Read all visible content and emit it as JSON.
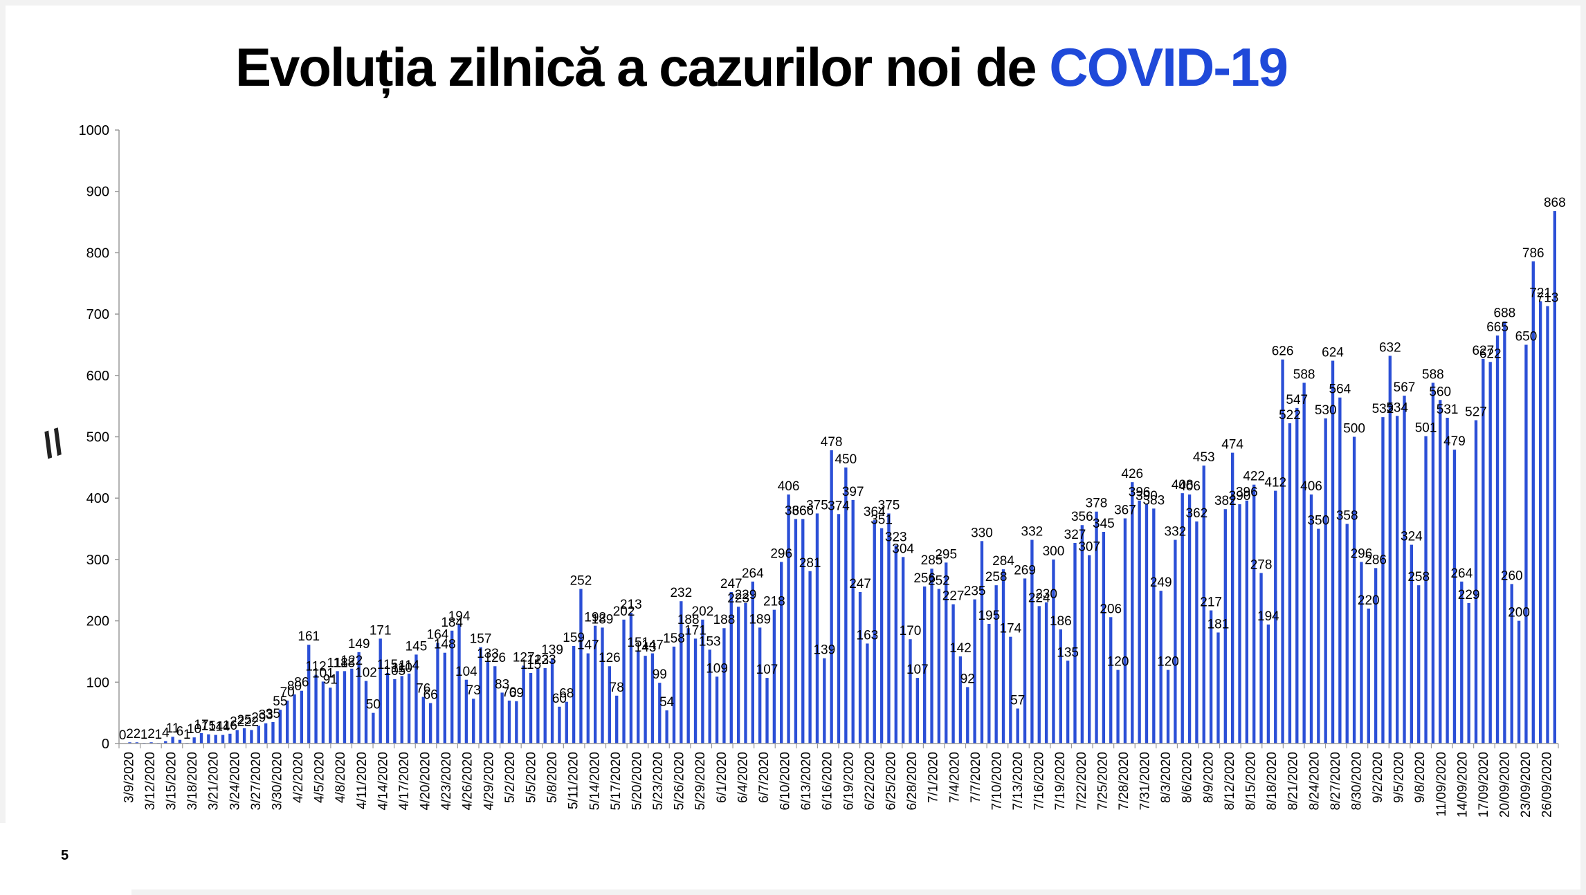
{
  "slide": {
    "title_main": "Evoluția zilnică a cazurilor noi de ",
    "title_accent": "COVID-19",
    "page_number": "5",
    "axis_break_mark": "//"
  },
  "colors": {
    "bar": "#2b4fd6",
    "accent": "#1f49d9",
    "axis": "#9a9a9a"
  },
  "chart_data": {
    "type": "bar",
    "title": "Evoluția zilnică a cazurilor noi de COVID-19",
    "xlabel": "",
    "ylabel": "",
    "ylim": [
      0,
      1000
    ],
    "yticks": [
      0,
      100,
      200,
      300,
      400,
      500,
      600,
      700,
      800,
      900,
      1000
    ],
    "grid": false,
    "legend": "none",
    "x_tick_labels": [
      "3/9/2020",
      "3/12/2020",
      "3/15/2020",
      "3/18/2020",
      "3/21/2020",
      "3/24/2020",
      "3/27/2020",
      "3/30/2020",
      "4/2/2020",
      "4/5/2020",
      "4/8/2020",
      "4/11/2020",
      "4/14/2020",
      "4/17/2020",
      "4/20/2020",
      "4/23/2020",
      "4/26/2020",
      "4/29/2020",
      "5/2/2020",
      "5/5/2020",
      "5/8/2020",
      "5/11/2020",
      "5/14/2020",
      "5/17/2020",
      "5/20/2020",
      "5/23/2020",
      "5/26/2020",
      "5/29/2020",
      "6/1/2020",
      "6/4/2020",
      "6/7/2020",
      "6/10/2020",
      "6/13/2020",
      "6/16/2020",
      "6/19/2020",
      "6/22/2020",
      "6/25/2020",
      "6/28/2020",
      "7/1/2020",
      "7/4/2020",
      "7/7/2020",
      "7/10/2020",
      "7/13/2020",
      "7/16/2020",
      "7/19/2020",
      "7/22/2020",
      "7/25/2020",
      "7/28/2020",
      "7/31/2020",
      "8/3/2020",
      "8/6/2020",
      "8/9/2020",
      "8/12/2020",
      "8/15/2020",
      "8/18/2020",
      "8/21/2020",
      "8/24/2020",
      "8/27/2020",
      "8/30/2020",
      "9/2/2020",
      "9/5/2020",
      "9/8/2020",
      "11/09/2020",
      "14/09/2020",
      "17/09/2020",
      "20/09/2020",
      "23/09/2020",
      "26/09/2020"
    ],
    "values": [
      0,
      2,
      2,
      1,
      2,
      1,
      4,
      11,
      6,
      1,
      10,
      17,
      15,
      14,
      14,
      16,
      22,
      25,
      22,
      29,
      33,
      35,
      55,
      70,
      80,
      86,
      161,
      112,
      101,
      91,
      118,
      118,
      122,
      149,
      102,
      50,
      171,
      115,
      105,
      110,
      114,
      145,
      76,
      66,
      164,
      148,
      184,
      194,
      104,
      73,
      157,
      133,
      126,
      83,
      70,
      69,
      127,
      115,
      123,
      123,
      139,
      60,
      68,
      159,
      252,
      147,
      192,
      189,
      126,
      78,
      202,
      213,
      151,
      143,
      147,
      99,
      54,
      158,
      232,
      188,
      171,
      202,
      153,
      109,
      188,
      247,
      223,
      229,
      264,
      189,
      107,
      218,
      296,
      406,
      366,
      366,
      281,
      375,
      139,
      478,
      374,
      450,
      397,
      247,
      163,
      364,
      351,
      375,
      323,
      304,
      170,
      107,
      256,
      285,
      252,
      295,
      227,
      142,
      92,
      235,
      330,
      195,
      258,
      284,
      174,
      57,
      269,
      332,
      224,
      230,
      300,
      186,
      135,
      327,
      356,
      307,
      378,
      345,
      206,
      120,
      367,
      426,
      396,
      390,
      383,
      249,
      120,
      332,
      408,
      406,
      362,
      453,
      217,
      181,
      382,
      474,
      390,
      396,
      422,
      278,
      194,
      412,
      626,
      522,
      547,
      588,
      406,
      350,
      530,
      624,
      564,
      358,
      500,
      296,
      220,
      286,
      532,
      632,
      534,
      567,
      324,
      258,
      501,
      588,
      560,
      531,
      479,
      264,
      229,
      527,
      627,
      622,
      665,
      688,
      260,
      200,
      650,
      786,
      721,
      713,
      868
    ],
    "data_labels": [
      "0",
      "2",
      "2",
      "1",
      "2",
      "1",
      "4",
      "11",
      "6",
      "1",
      "10",
      "17",
      "15",
      "14",
      "14",
      "16",
      "22",
      "25",
      "22",
      "29",
      "33",
      "35",
      "55",
      "70",
      "80",
      "86",
      "161",
      "112",
      "101",
      "91",
      "118",
      "118",
      "122",
      "149",
      "102",
      "50",
      "171",
      "115",
      "105",
      "110",
      "114",
      "145",
      "76",
      "66",
      "164",
      "148",
      "184",
      "194",
      "104",
      "73",
      "157",
      "133",
      "126",
      "83",
      "70",
      "69",
      "127",
      "115",
      "123",
      "123",
      "139",
      "60",
      "68",
      "159",
      "252",
      "147",
      "192",
      "189",
      "126",
      "78",
      "202",
      "213",
      "151",
      "143",
      "147",
      "99",
      "54",
      "158",
      "232",
      "188",
      "171",
      "202",
      "153",
      "109",
      "188",
      "247",
      "223",
      "229",
      "264",
      "189",
      "107",
      "218",
      "296",
      "406",
      "366",
      "366",
      "281",
      "375",
      "139",
      "478",
      "374",
      "450",
      "397",
      "247",
      "163",
      "364",
      "351",
      "375",
      "323",
      "304",
      "170",
      "107",
      "256",
      "285",
      "252",
      "295",
      "227",
      "142",
      "92",
      "235",
      "330",
      "195",
      "258",
      "284",
      "174",
      "57",
      "269",
      "332",
      "224",
      "230",
      "300",
      "186",
      "135",
      "327",
      "356",
      "307",
      "378",
      "345",
      "206",
      "120",
      "367",
      "426",
      "396",
      "390",
      "383",
      "249",
      "120",
      "332",
      "408",
      "406",
      "362",
      "453",
      "217",
      "181",
      "382",
      "474",
      "390",
      "396",
      "422",
      "278",
      "194",
      "412",
      "626",
      "522",
      "547",
      "588",
      "406",
      "350",
      "530",
      "624",
      "564",
      "358",
      "500",
      "296",
      "220",
      "286",
      "532",
      "632",
      "534",
      "567",
      "324",
      "258",
      "501",
      "588",
      "560",
      "531",
      "479",
      "264",
      "229",
      "527",
      "627",
      "622",
      "665",
      "688",
      "260",
      "200",
      "650",
      "786",
      "721",
      "713",
      "868"
    ]
  }
}
